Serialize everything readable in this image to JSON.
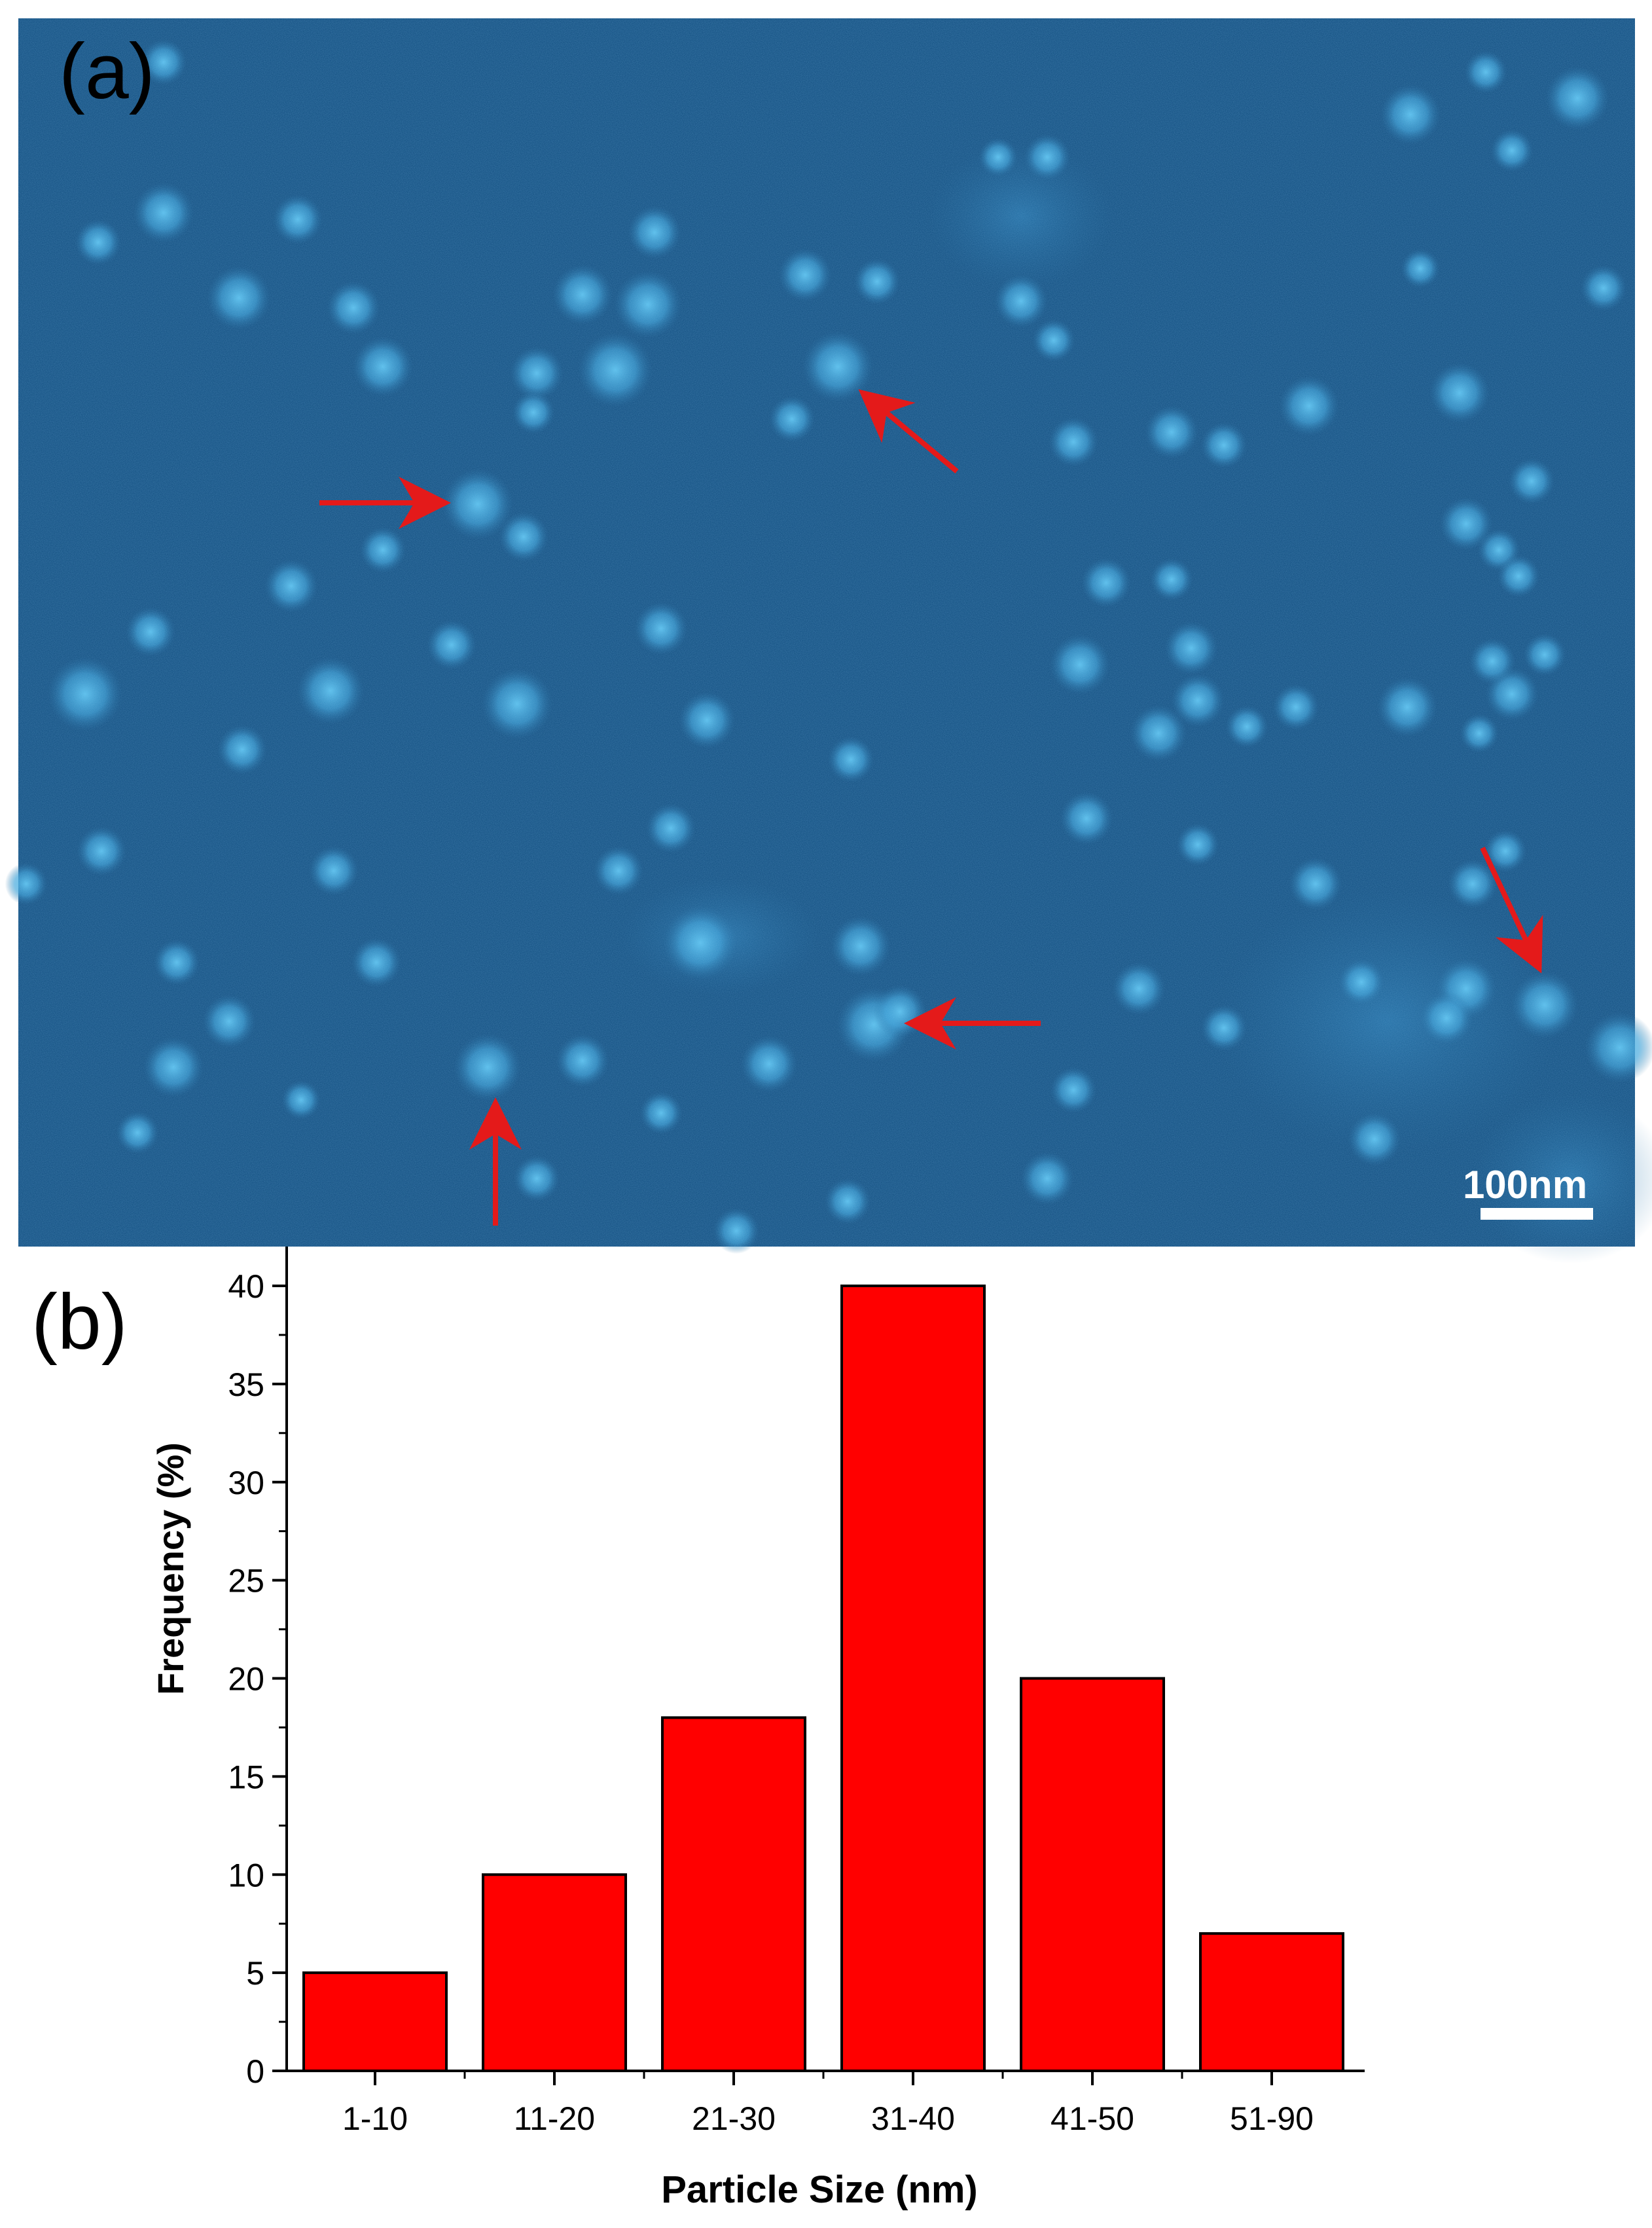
{
  "panels": {
    "a_label": "(a)",
    "b_label": "(b)"
  },
  "micrograph": {
    "scale_bar_label": "100nm",
    "background_color": "#0f4c7e",
    "particle_color": "#35a6dc",
    "arrow_color": "#e41a1a"
  },
  "chart_data": {
    "type": "bar",
    "categories": [
      "1-10",
      "11-20",
      "21-30",
      "31-40",
      "41-50",
      "51-90"
    ],
    "values": [
      5,
      10,
      18,
      40,
      20,
      7
    ],
    "xlabel": "Particle Size (nm)",
    "ylabel": "Frequency (%)",
    "ylim": [
      0,
      42
    ],
    "yticks": [
      0,
      5,
      10,
      15,
      20,
      25,
      30,
      35,
      40
    ],
    "bar_color": "#ff0000",
    "grid": false
  }
}
